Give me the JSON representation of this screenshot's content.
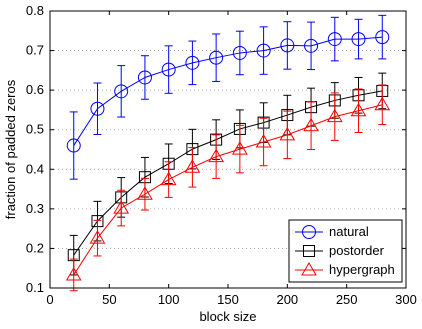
{
  "chart_data": {
    "type": "line",
    "xlabel": "block size",
    "ylabel": "fraction of padded zeros",
    "xlim": [
      0,
      300
    ],
    "ylim": [
      0.1,
      0.8
    ],
    "xticks": [
      0,
      50,
      100,
      150,
      200,
      250,
      300
    ],
    "yticks": [
      0.1,
      0.2,
      0.3,
      0.4,
      0.5,
      0.6,
      0.7,
      0.8
    ],
    "xtick_labels": [
      "0",
      "50",
      "100",
      "150",
      "200",
      "250",
      "300"
    ],
    "ytick_labels": [
      "0.1",
      "0.2",
      "0.3",
      "0.4",
      "0.5",
      "0.6",
      "0.7",
      "0.8"
    ],
    "grid": "dotted horizontal",
    "legend_position": "bottom-right",
    "x": [
      20,
      40,
      60,
      80,
      100,
      120,
      140,
      160,
      180,
      200,
      220,
      240,
      260,
      280
    ],
    "series": [
      {
        "name": "natural",
        "marker": "circle",
        "color": "#0000ff",
        "values": [
          0.46,
          0.553,
          0.597,
          0.632,
          0.652,
          0.669,
          0.682,
          0.694,
          0.7,
          0.713,
          0.712,
          0.729,
          0.729,
          0.734
        ],
        "err": [
          0.085,
          0.065,
          0.065,
          0.055,
          0.06,
          0.055,
          0.06,
          0.055,
          0.06,
          0.06,
          0.06,
          0.055,
          0.05,
          0.055
        ]
      },
      {
        "name": "postorder",
        "marker": "square",
        "color": "#000000",
        "values": [
          0.183,
          0.269,
          0.329,
          0.38,
          0.414,
          0.451,
          0.475,
          0.502,
          0.518,
          0.537,
          0.557,
          0.574,
          0.587,
          0.598
        ],
        "err": [
          0.05,
          0.05,
          0.05,
          0.05,
          0.05,
          0.05,
          0.05,
          0.048,
          0.05,
          0.05,
          0.048,
          0.045,
          0.045,
          0.045
        ]
      },
      {
        "name": "hypergraph",
        "marker": "triangle",
        "color": "#ff0000",
        "values": [
          0.133,
          0.226,
          0.302,
          0.337,
          0.374,
          0.405,
          0.432,
          0.451,
          0.469,
          0.487,
          0.51,
          0.533,
          0.548,
          0.563
        ],
        "err": [
          0.04,
          0.045,
          0.045,
          0.04,
          0.045,
          0.05,
          0.055,
          0.06,
          0.06,
          0.06,
          0.06,
          0.06,
          0.055,
          0.05
        ]
      }
    ]
  }
}
